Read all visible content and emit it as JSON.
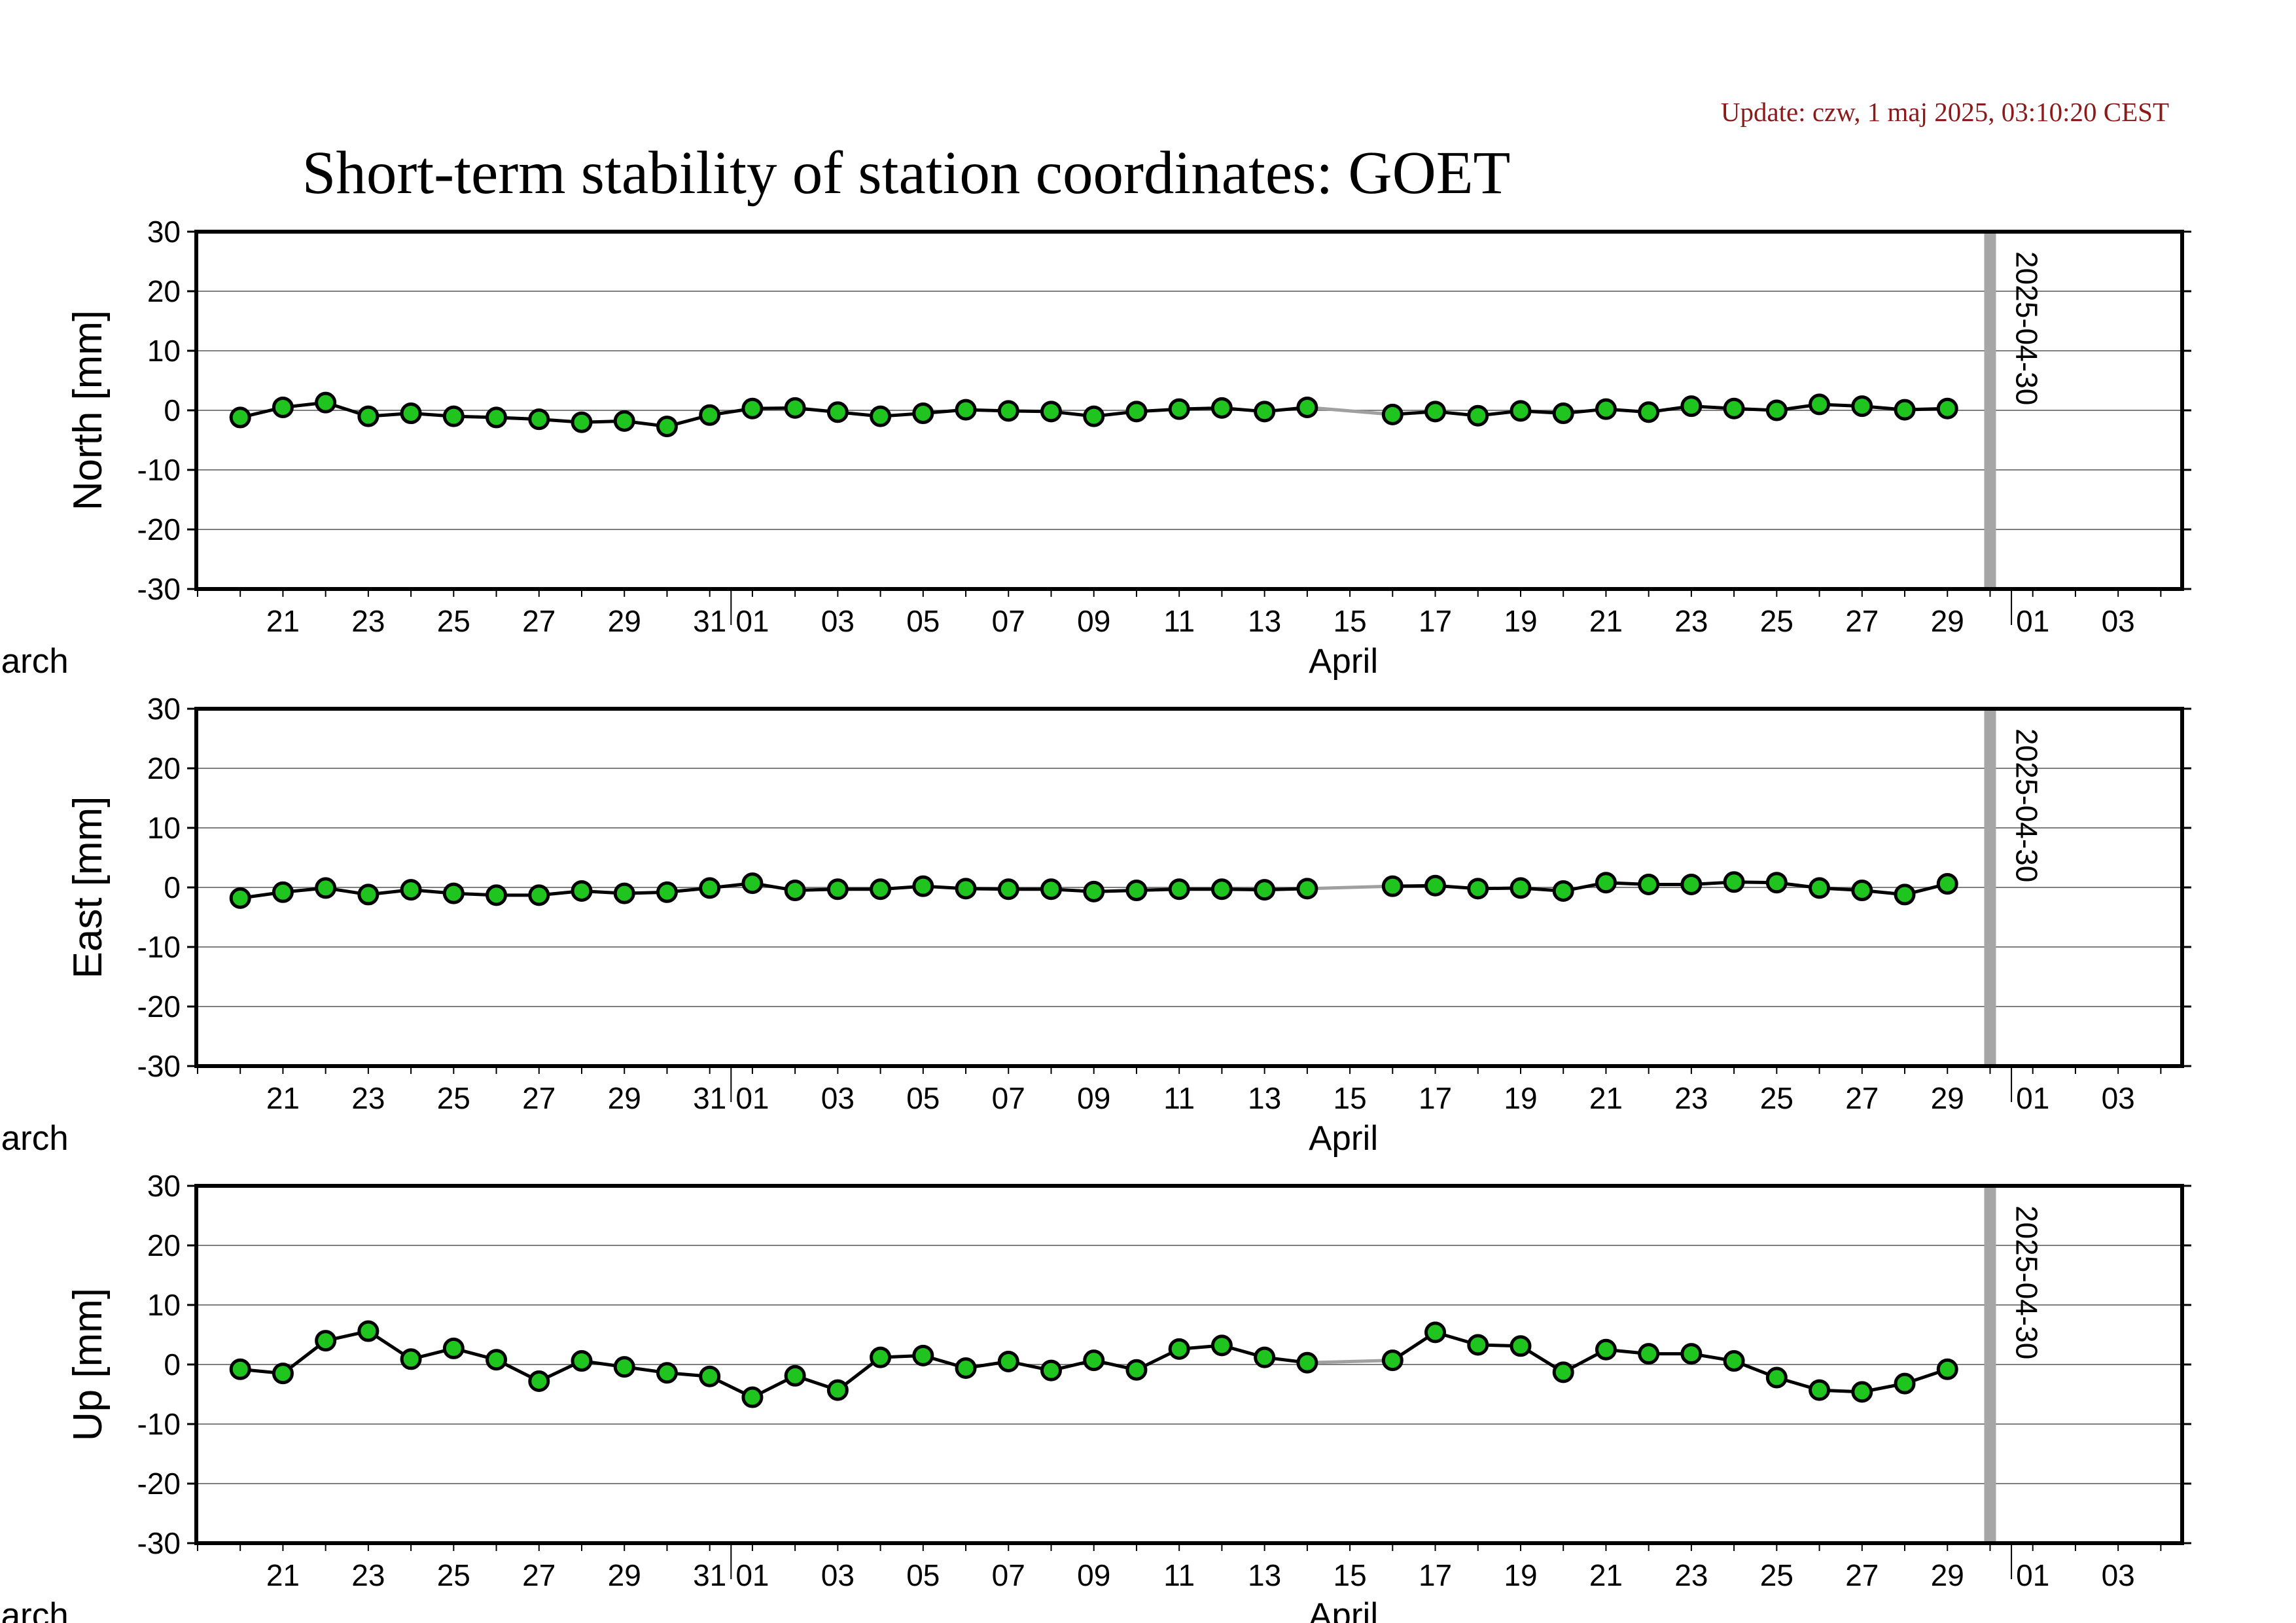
{
  "update_text": "Update: czw, 1 maj 2025, 03:10:20 CEST",
  "title": "Short-term stability of station coordinates: GOET",
  "colors": {
    "update": "#8b1a1a",
    "marker_fill": "#1fc41f",
    "marker_line": "#a0a0a0",
    "grid": "#7f7f7f"
  },
  "chart_data": [
    {
      "type": "line",
      "ylabel": "North [mm]",
      "ylim": [
        -30,
        30
      ],
      "yticks": [
        30,
        20,
        10,
        0,
        -10,
        -20,
        -30
      ],
      "xlim": [
        "2025-03-19",
        "2025-05-04"
      ],
      "x_tick_labels": [
        "21",
        "23",
        "25",
        "27",
        "29",
        "31",
        "01",
        "03",
        "05",
        "07",
        "09",
        "11",
        "13",
        "15",
        "17",
        "19",
        "21",
        "23",
        "25",
        "27",
        "29",
        "01",
        "03"
      ],
      "month_labels": [
        "March",
        "April"
      ],
      "marker_label": "2025-04-30",
      "grid": true,
      "points": [
        [
          "2025-03-20",
          -1.2
        ],
        [
          "2025-03-21",
          0.5
        ],
        [
          "2025-03-22",
          1.3
        ],
        [
          "2025-03-23",
          -1.0
        ],
        [
          "2025-03-24",
          -0.5
        ],
        [
          "2025-03-25",
          -1.0
        ],
        [
          "2025-03-26",
          -1.2
        ],
        [
          "2025-03-27",
          -1.5
        ],
        [
          "2025-03-28",
          -2.0
        ],
        [
          "2025-03-29",
          -1.8
        ],
        [
          "2025-03-30",
          -2.7
        ],
        [
          "2025-03-31",
          -0.8
        ],
        [
          "2025-04-01",
          0.3
        ],
        [
          "2025-04-02",
          0.4
        ],
        [
          "2025-04-03",
          -0.3
        ],
        [
          "2025-04-04",
          -1.0
        ],
        [
          "2025-04-05",
          -0.5
        ],
        [
          "2025-04-06",
          0.1
        ],
        [
          "2025-04-07",
          -0.1
        ],
        [
          "2025-04-08",
          -0.2
        ],
        [
          "2025-04-09",
          -1.0
        ],
        [
          "2025-04-10",
          -0.2
        ],
        [
          "2025-04-11",
          0.2
        ],
        [
          "2025-04-12",
          0.4
        ],
        [
          "2025-04-13",
          -0.2
        ],
        [
          "2025-04-14",
          0.5
        ],
        [
          "2025-04-16",
          -0.7
        ],
        [
          "2025-04-17",
          -0.2
        ],
        [
          "2025-04-18",
          -0.9
        ],
        [
          "2025-04-19",
          -0.1
        ],
        [
          "2025-04-20",
          -0.5
        ],
        [
          "2025-04-21",
          0.2
        ],
        [
          "2025-04-22",
          -0.3
        ],
        [
          "2025-04-23",
          0.7
        ],
        [
          "2025-04-24",
          0.3
        ],
        [
          "2025-04-25",
          0.0
        ],
        [
          "2025-04-26",
          1.0
        ],
        [
          "2025-04-27",
          0.7
        ],
        [
          "2025-04-28",
          0.1
        ],
        [
          "2025-04-29",
          0.3
        ]
      ]
    },
    {
      "type": "line",
      "ylabel": "East [mm]",
      "ylim": [
        -30,
        30
      ],
      "yticks": [
        30,
        20,
        10,
        0,
        -10,
        -20,
        -30
      ],
      "xlim": [
        "2025-03-19",
        "2025-05-04"
      ],
      "x_tick_labels": [
        "21",
        "23",
        "25",
        "27",
        "29",
        "31",
        "01",
        "03",
        "05",
        "07",
        "09",
        "11",
        "13",
        "15",
        "17",
        "19",
        "21",
        "23",
        "25",
        "27",
        "29",
        "01",
        "03"
      ],
      "month_labels": [
        "March",
        "April"
      ],
      "marker_label": "2025-04-30",
      "grid": true,
      "points": [
        [
          "2025-03-20",
          -1.8
        ],
        [
          "2025-03-21",
          -0.8
        ],
        [
          "2025-03-22",
          -0.1
        ],
        [
          "2025-03-23",
          -1.2
        ],
        [
          "2025-03-24",
          -0.4
        ],
        [
          "2025-03-25",
          -1.0
        ],
        [
          "2025-03-26",
          -1.3
        ],
        [
          "2025-03-27",
          -1.3
        ],
        [
          "2025-03-28",
          -0.6
        ],
        [
          "2025-03-29",
          -1.0
        ],
        [
          "2025-03-30",
          -0.8
        ],
        [
          "2025-03-31",
          -0.1
        ],
        [
          "2025-04-01",
          0.7
        ],
        [
          "2025-04-02",
          -0.5
        ],
        [
          "2025-04-03",
          -0.3
        ],
        [
          "2025-04-04",
          -0.3
        ],
        [
          "2025-04-05",
          0.2
        ],
        [
          "2025-04-06",
          -0.2
        ],
        [
          "2025-04-07",
          -0.3
        ],
        [
          "2025-04-08",
          -0.3
        ],
        [
          "2025-04-09",
          -0.7
        ],
        [
          "2025-04-10",
          -0.5
        ],
        [
          "2025-04-11",
          -0.3
        ],
        [
          "2025-04-12",
          -0.3
        ],
        [
          "2025-04-13",
          -0.4
        ],
        [
          "2025-04-14",
          -0.2
        ],
        [
          "2025-04-16",
          0.2
        ],
        [
          "2025-04-17",
          0.3
        ],
        [
          "2025-04-18",
          -0.2
        ],
        [
          "2025-04-19",
          -0.1
        ],
        [
          "2025-04-20",
          -0.6
        ],
        [
          "2025-04-21",
          0.8
        ],
        [
          "2025-04-22",
          0.5
        ],
        [
          "2025-04-23",
          0.5
        ],
        [
          "2025-04-24",
          0.9
        ],
        [
          "2025-04-25",
          0.8
        ],
        [
          "2025-04-26",
          -0.1
        ],
        [
          "2025-04-27",
          -0.5
        ],
        [
          "2025-04-28",
          -1.2
        ],
        [
          "2025-04-29",
          0.6
        ]
      ]
    },
    {
      "type": "line",
      "ylabel": "Up [mm]",
      "ylim": [
        -30,
        30
      ],
      "yticks": [
        30,
        20,
        10,
        0,
        -10,
        -20,
        -30
      ],
      "xlim": [
        "2025-03-19",
        "2025-05-04"
      ],
      "x_tick_labels": [
        "21",
        "23",
        "25",
        "27",
        "29",
        "31",
        "01",
        "03",
        "05",
        "07",
        "09",
        "11",
        "13",
        "15",
        "17",
        "19",
        "21",
        "23",
        "25",
        "27",
        "29",
        "01",
        "03"
      ],
      "month_labels": [
        "March",
        "April"
      ],
      "marker_label": "2025-04-30",
      "grid": true,
      "points": [
        [
          "2025-03-20",
          -0.8
        ],
        [
          "2025-03-21",
          -1.5
        ],
        [
          "2025-03-22",
          4.0
        ],
        [
          "2025-03-23",
          5.6
        ],
        [
          "2025-03-24",
          0.9
        ],
        [
          "2025-03-25",
          2.7
        ],
        [
          "2025-03-26",
          0.8
        ],
        [
          "2025-03-27",
          -2.8
        ],
        [
          "2025-03-28",
          0.6
        ],
        [
          "2025-03-29",
          -0.4
        ],
        [
          "2025-03-30",
          -1.4
        ],
        [
          "2025-03-31",
          -2.0
        ],
        [
          "2025-04-01",
          -5.5
        ],
        [
          "2025-04-02",
          -1.9
        ],
        [
          "2025-04-03",
          -4.3
        ],
        [
          "2025-04-04",
          1.2
        ],
        [
          "2025-04-05",
          1.5
        ],
        [
          "2025-04-06",
          -0.6
        ],
        [
          "2025-04-07",
          0.5
        ],
        [
          "2025-04-08",
          -1.0
        ],
        [
          "2025-04-09",
          0.7
        ],
        [
          "2025-04-10",
          -0.9
        ],
        [
          "2025-04-11",
          2.6
        ],
        [
          "2025-04-12",
          3.2
        ],
        [
          "2025-04-13",
          1.2
        ],
        [
          "2025-04-14",
          0.3
        ],
        [
          "2025-04-16",
          0.7
        ],
        [
          "2025-04-17",
          5.4
        ],
        [
          "2025-04-18",
          3.3
        ],
        [
          "2025-04-19",
          3.1
        ],
        [
          "2025-04-20",
          -1.3
        ],
        [
          "2025-04-21",
          2.5
        ],
        [
          "2025-04-22",
          1.8
        ],
        [
          "2025-04-23",
          1.8
        ],
        [
          "2025-04-24",
          0.6
        ],
        [
          "2025-04-25",
          -2.2
        ],
        [
          "2025-04-26",
          -4.3
        ],
        [
          "2025-04-27",
          -4.6
        ],
        [
          "2025-04-28",
          -3.2
        ],
        [
          "2025-04-29",
          -0.8
        ]
      ]
    }
  ]
}
